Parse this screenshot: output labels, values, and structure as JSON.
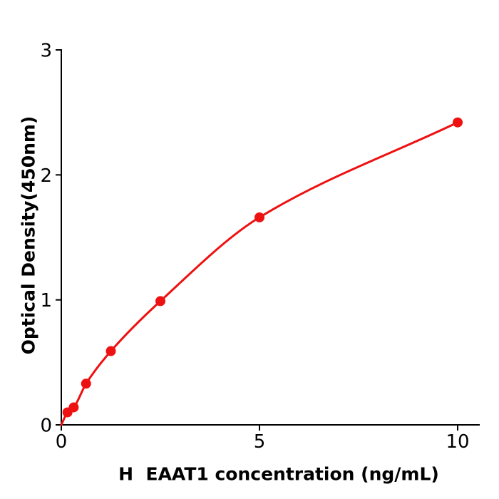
{
  "figure": {
    "background": "#ffffff"
  },
  "chart_data": {
    "type": "scatter",
    "title": "",
    "xlabel": "H  EAAT1 concentration (ng/mL)",
    "ylabel": "Optical Density(450nm)",
    "x": [
      0.156,
      0.313,
      0.625,
      1.25,
      2.5,
      5,
      10
    ],
    "y": [
      0.1,
      0.14,
      0.33,
      0.59,
      0.99,
      1.66,
      2.42
    ],
    "curve_origin": [
      0,
      0
    ],
    "xticks": [
      0,
      5,
      10
    ],
    "xtick_labels": [
      "0",
      "5",
      "10"
    ],
    "yticks": [
      0,
      1,
      2,
      3
    ],
    "ytick_labels": [
      "0",
      "1",
      "2",
      "3"
    ],
    "xlim": [
      0,
      10.56
    ],
    "ylim": [
      0,
      3
    ],
    "grid": false,
    "legend": null,
    "line_color": "#ee1111",
    "marker_color": "#ee1111",
    "axis_color": "#000000",
    "text_color": "#000000"
  }
}
